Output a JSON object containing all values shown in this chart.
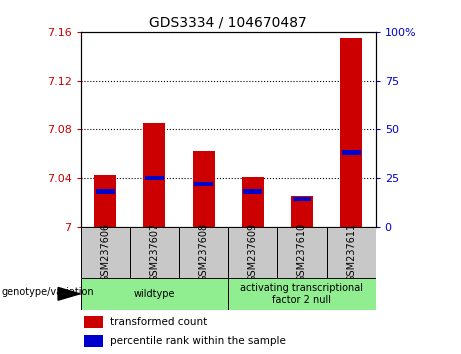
{
  "title": "GDS3334 / 104670487",
  "samples": [
    "GSM237606",
    "GSM237607",
    "GSM237608",
    "GSM237609",
    "GSM237610",
    "GSM237611"
  ],
  "red_values": [
    7.042,
    7.085,
    7.062,
    7.041,
    7.025,
    7.155
  ],
  "blue_percentiles": [
    18,
    25,
    22,
    18,
    14,
    38
  ],
  "ylim_left": [
    7.0,
    7.16
  ],
  "ylim_right": [
    0,
    100
  ],
  "left_ticks": [
    7.0,
    7.04,
    7.08,
    7.12,
    7.16
  ],
  "right_ticks": [
    0,
    25,
    50,
    75,
    100
  ],
  "left_tick_labels": [
    "7",
    "7.04",
    "7.08",
    "7.12",
    "7.16"
  ],
  "right_tick_labels": [
    "0",
    "25",
    "50",
    "75",
    "100%"
  ],
  "groups": [
    {
      "label": "wildtype",
      "samples": [
        0,
        1,
        2
      ],
      "color": "#90ee90"
    },
    {
      "label": "activating transcriptional\nfactor 2 null",
      "samples": [
        3,
        4,
        5
      ],
      "color": "#90ee90"
    }
  ],
  "bar_color_red": "#cc0000",
  "bar_color_blue": "#0000cc",
  "bg_color": "#ffffff",
  "sample_box_color": "#c8c8c8",
  "bar_width": 0.45,
  "legend_labels": [
    "transformed count",
    "percentile rank within the sample"
  ],
  "genotype_label": "genotype/variation"
}
